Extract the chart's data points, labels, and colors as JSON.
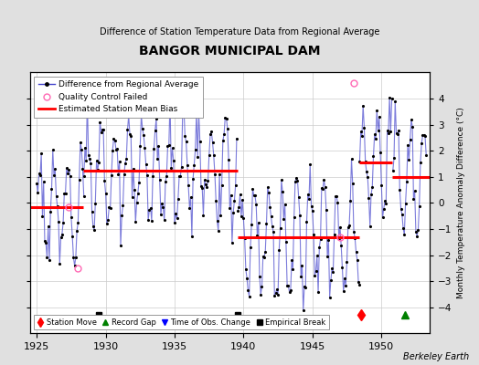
{
  "title": "BANGOR MUNICIPAL DAM",
  "subtitle": "Difference of Station Temperature Data from Regional Average",
  "ylabel": "Monthly Temperature Anomaly Difference (°C)",
  "xlim": [
    1924.5,
    1953.5
  ],
  "ylim": [
    -5,
    5
  ],
  "yticks": [
    -4,
    -3,
    -2,
    -1,
    0,
    1,
    2,
    3,
    4
  ],
  "xticks": [
    1925,
    1930,
    1935,
    1940,
    1945,
    1950
  ],
  "background_color": "#e0e0e0",
  "plot_bg_color": "#ffffff",
  "bias_segments": [
    {
      "x_start": 1924.5,
      "x_end": 1928.4,
      "y": -0.15
    },
    {
      "x_start": 1928.4,
      "x_end": 1939.6,
      "y": 1.25
    },
    {
      "x_start": 1939.6,
      "x_end": 1948.4,
      "y": -1.3
    },
    {
      "x_start": 1948.4,
      "x_end": 1950.8,
      "y": 1.55
    },
    {
      "x_start": 1950.8,
      "x_end": 1953.5,
      "y": 1.0
    }
  ],
  "event_markers": [
    {
      "type": "empirical_break",
      "year": 1929.5
    },
    {
      "type": "empirical_break",
      "year": 1939.6
    },
    {
      "type": "station_move",
      "year": 1948.5
    },
    {
      "type": "record_gap",
      "year": 1951.7
    }
  ],
  "qc_failed": [
    [
      1927.3,
      -0.15
    ],
    [
      1928.0,
      -2.5
    ],
    [
      1947.0,
      -1.3
    ],
    [
      1948.0,
      4.6
    ]
  ],
  "data_segments": [
    {
      "year_start": 1925.0,
      "year_end": 1928.42,
      "mean": -0.15,
      "amp": 1.8,
      "seed": 1
    },
    {
      "year_start": 1928.42,
      "year_end": 1939.58,
      "mean": 1.25,
      "amp": 1.8,
      "seed": 2
    },
    {
      "year_start": 1939.58,
      "year_end": 1948.42,
      "mean": -1.3,
      "amp": 1.8,
      "seed": 3
    },
    {
      "year_start": 1948.42,
      "year_end": 1950.83,
      "mean": 1.55,
      "amp": 1.8,
      "seed": 4
    },
    {
      "year_start": 1950.83,
      "year_end": 1953.25,
      "mean": 1.0,
      "amp": 1.8,
      "seed": 5
    }
  ]
}
